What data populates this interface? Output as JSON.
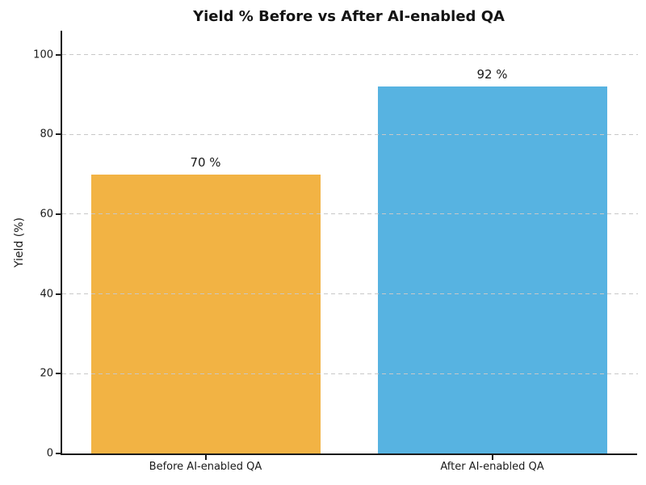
{
  "chart_data": {
    "type": "bar",
    "title": "Yield % Before vs After AI-enabled QA",
    "ylabel": "Yield (%)",
    "xlabel": "",
    "categories": [
      "Before AI-enabled QA",
      "After AI-enabled QA"
    ],
    "values": [
      70,
      92
    ],
    "value_labels": [
      "70 %",
      "92 %"
    ],
    "bar_colors": [
      "#F2B344",
      "#57B3E1"
    ],
    "yticks": [
      0,
      20,
      40,
      60,
      80,
      100
    ],
    "ylim": [
      0,
      106
    ],
    "bar_width_fraction": 0.8,
    "grid": {
      "axis": "y",
      "style": "dashed",
      "color": "#C8C8C8",
      "above_bars": true
    },
    "legend": "none",
    "colors": {
      "axis": "#1A1A1A",
      "text": "#1A1A1A",
      "background": "#FFFFFF"
    }
  }
}
